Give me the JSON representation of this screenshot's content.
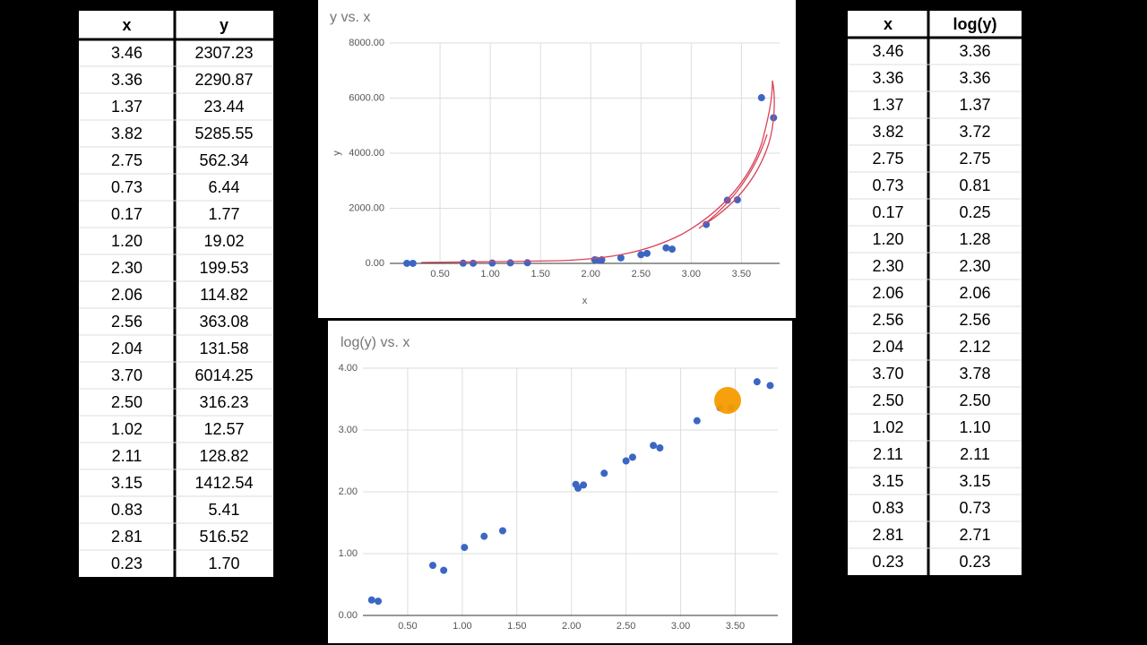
{
  "table_left": {
    "header": [
      "x",
      "y"
    ],
    "rows": [
      [
        "3.46",
        "2307.23"
      ],
      [
        "3.36",
        "2290.87"
      ],
      [
        "1.37",
        "23.44"
      ],
      [
        "3.82",
        "5285.55"
      ],
      [
        "2.75",
        "562.34"
      ],
      [
        "0.73",
        "6.44"
      ],
      [
        "0.17",
        "1.77"
      ],
      [
        "1.20",
        "19.02"
      ],
      [
        "2.30",
        "199.53"
      ],
      [
        "2.06",
        "114.82"
      ],
      [
        "2.56",
        "363.08"
      ],
      [
        "2.04",
        "131.58"
      ],
      [
        "3.70",
        "6014.25"
      ],
      [
        "2.50",
        "316.23"
      ],
      [
        "1.02",
        "12.57"
      ],
      [
        "2.11",
        "128.82"
      ],
      [
        "3.15",
        "1412.54"
      ],
      [
        "0.83",
        "5.41"
      ],
      [
        "2.81",
        "516.52"
      ],
      [
        "0.23",
        "1.70"
      ]
    ]
  },
  "table_right": {
    "header": [
      "x",
      "log(y)"
    ],
    "rows": [
      [
        "3.46",
        "3.36"
      ],
      [
        "3.36",
        "3.36"
      ],
      [
        "1.37",
        "1.37"
      ],
      [
        "3.82",
        "3.72"
      ],
      [
        "2.75",
        "2.75"
      ],
      [
        "0.73",
        "0.81"
      ],
      [
        "0.17",
        "0.25"
      ],
      [
        "1.20",
        "1.28"
      ],
      [
        "2.30",
        "2.30"
      ],
      [
        "2.06",
        "2.06"
      ],
      [
        "2.56",
        "2.56"
      ],
      [
        "2.04",
        "2.12"
      ],
      [
        "3.70",
        "3.78"
      ],
      [
        "2.50",
        "2.50"
      ],
      [
        "1.02",
        "1.10"
      ],
      [
        "2.11",
        "2.11"
      ],
      [
        "3.15",
        "3.15"
      ],
      [
        "0.83",
        "0.73"
      ],
      [
        "2.81",
        "2.71"
      ],
      [
        "0.23",
        "0.23"
      ]
    ]
  },
  "chart_data": [
    {
      "type": "scatter",
      "title": "y vs. x",
      "x_label": "x",
      "y_label": "y",
      "color": "#3b66c4",
      "grid": true,
      "x": [
        3.46,
        3.36,
        1.37,
        3.82,
        2.75,
        0.73,
        0.17,
        1.2,
        2.3,
        2.06,
        2.56,
        2.04,
        3.7,
        2.5,
        1.02,
        2.11,
        3.15,
        0.83,
        2.81,
        0.23
      ],
      "values": [
        2307.23,
        2290.87,
        23.44,
        5285.55,
        562.34,
        6.44,
        1.77,
        19.02,
        199.53,
        114.82,
        363.08,
        131.58,
        6014.25,
        316.23,
        12.57,
        128.82,
        1412.54,
        5.41,
        516.52,
        1.7
      ],
      "xlim": [
        0,
        3.88
      ],
      "ylim": [
        0,
        8000
      ],
      "xticks": [
        {
          "value": 0.5,
          "label": "0.50"
        },
        {
          "value": 1,
          "label": "1.00"
        },
        {
          "value": 1.5,
          "label": "1.50"
        },
        {
          "value": 2,
          "label": "2.00"
        },
        {
          "value": 2.5,
          "label": "2.50"
        },
        {
          "value": 3,
          "label": "3.00"
        },
        {
          "value": 3.5,
          "label": "3.50"
        }
      ],
      "yticks": [
        {
          "value": 0,
          "label": "0.00"
        },
        {
          "value": 2000,
          "label": "2000.00"
        },
        {
          "value": 4000,
          "label": "4000.00"
        },
        {
          "value": 6000,
          "label": "6000.00"
        },
        {
          "value": 8000,
          "label": "8000.00"
        }
      ]
    },
    {
      "type": "scatter",
      "title": "log(y) vs. x",
      "color": "#3b66c4",
      "grid": true,
      "x": [
        3.46,
        3.36,
        1.37,
        3.82,
        2.75,
        0.73,
        0.17,
        1.2,
        2.3,
        2.06,
        2.56,
        2.04,
        3.7,
        2.5,
        1.02,
        2.11,
        3.15,
        0.83,
        2.81,
        0.23
      ],
      "values": [
        3.36,
        3.36,
        1.37,
        3.72,
        2.75,
        0.81,
        0.25,
        1.28,
        2.3,
        2.06,
        2.56,
        2.12,
        3.78,
        2.5,
        1.1,
        2.11,
        3.15,
        0.73,
        2.71,
        0.23
      ],
      "xlim": [
        0.09,
        3.89
      ],
      "ylim": [
        0,
        4
      ],
      "xticks": [
        {
          "value": 0.5,
          "label": "0.50"
        },
        {
          "value": 1,
          "label": "1.00"
        },
        {
          "value": 1.5,
          "label": "1.50"
        },
        {
          "value": 2,
          "label": "2.00"
        },
        {
          "value": 2.5,
          "label": "2.50"
        },
        {
          "value": 3,
          "label": "3.00"
        },
        {
          "value": 3.5,
          "label": "3.50"
        }
      ],
      "yticks": [
        {
          "value": 0,
          "label": "0.00"
        },
        {
          "value": 1,
          "label": "1.00"
        },
        {
          "value": 2,
          "label": "2.00"
        },
        {
          "value": 3,
          "label": "3.00"
        },
        {
          "value": 4,
          "label": "4.00"
        }
      ]
    }
  ]
}
